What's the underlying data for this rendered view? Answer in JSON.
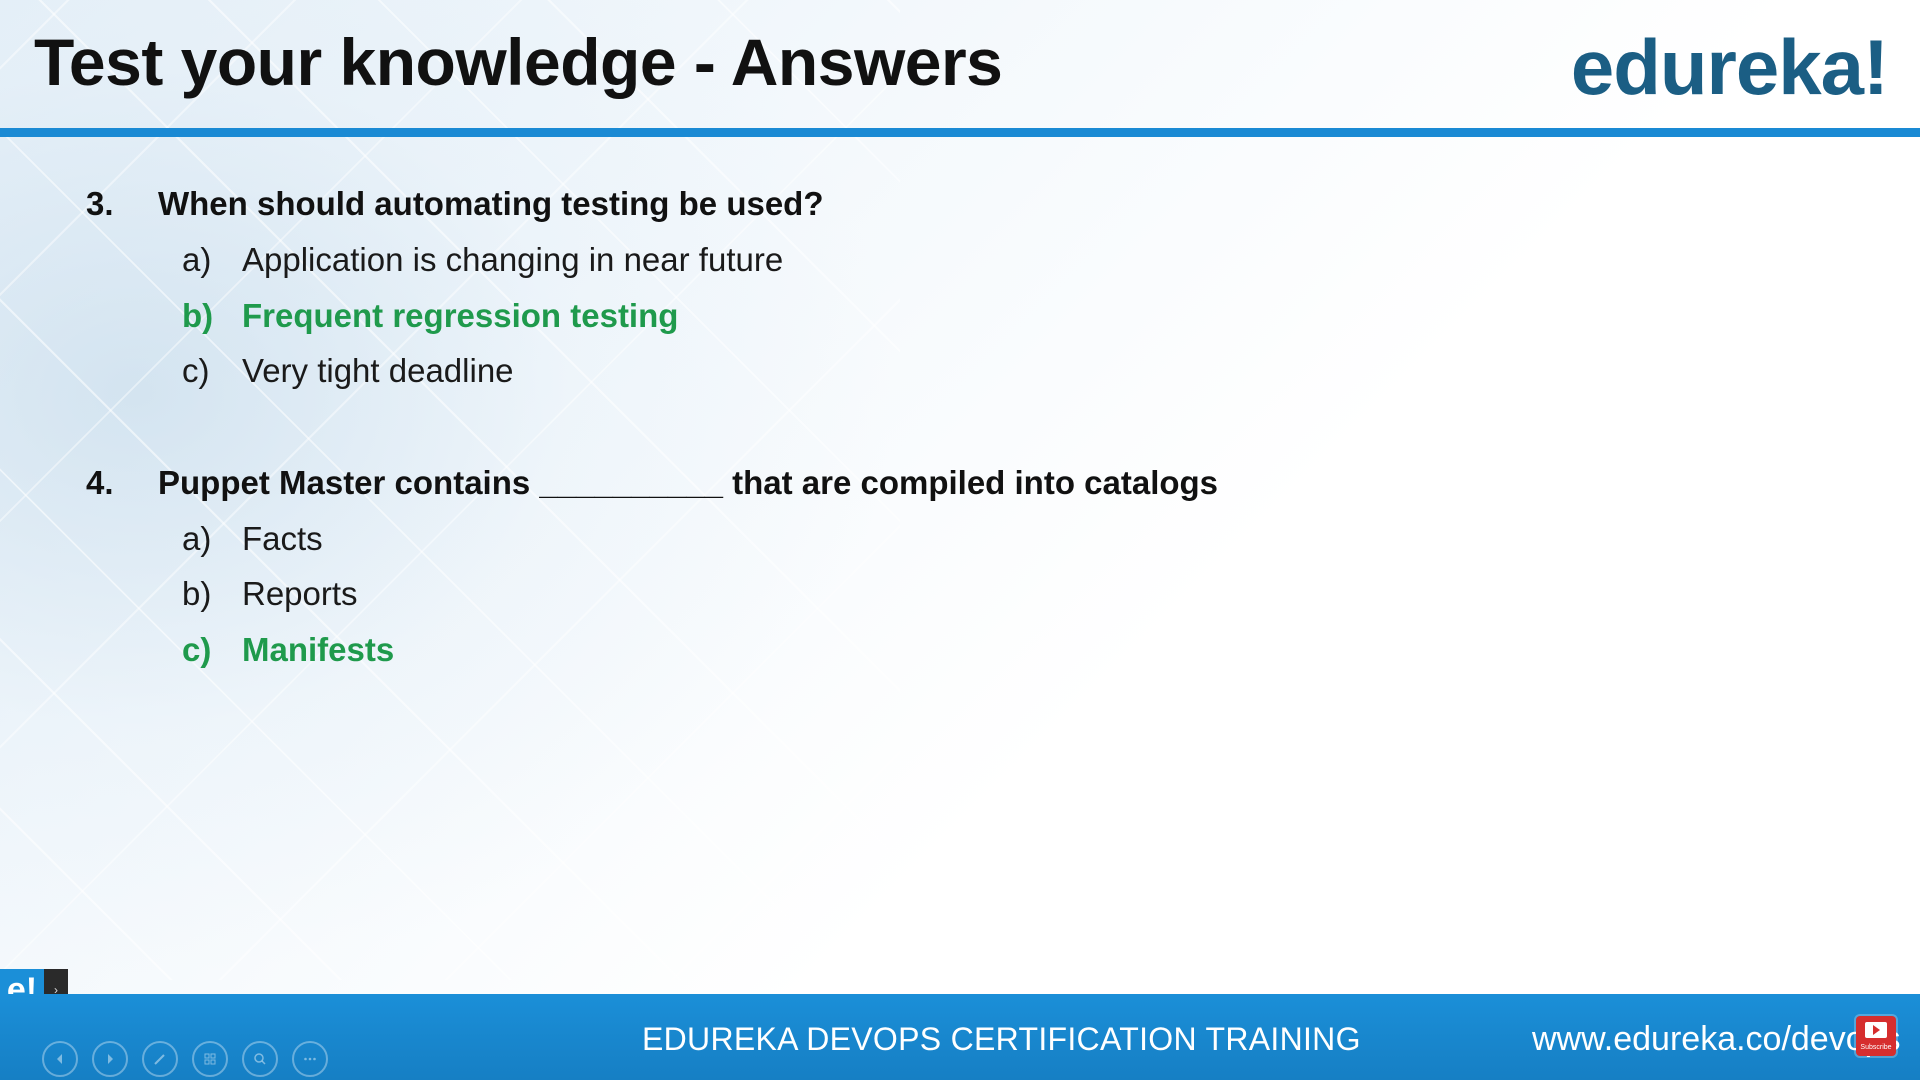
{
  "slide": {
    "title": "Test your knowledge - Answers",
    "logo_text": "edureka!"
  },
  "questions": [
    {
      "number": "3.",
      "text": "When should automating testing be used?",
      "options": [
        {
          "letter": "a)",
          "text": "Application is changing in near future",
          "correct": false
        },
        {
          "letter": "b)",
          "text": "Frequent regression testing",
          "correct": true
        },
        {
          "letter": "c)",
          "text": "Very tight deadline",
          "correct": false
        }
      ]
    },
    {
      "number": "4.",
      "text": "Puppet Master contains __________ that are compiled into catalogs",
      "options": [
        {
          "letter": "a)",
          "text": "Facts",
          "correct": false
        },
        {
          "letter": "b)",
          "text": "Reports",
          "correct": false
        },
        {
          "letter": "c)",
          "text": "Manifests",
          "correct": true
        }
      ]
    }
  ],
  "footer": {
    "title": "EDUREKA DEVOPS CERTIFICATION TRAINING",
    "url": "www.edureka.co/devops"
  },
  "overlay": {
    "mini_logo": "e!",
    "expand_glyph": "›",
    "subscribe_label": "Subscribe"
  },
  "controls": [
    {
      "name": "previous-slide-icon"
    },
    {
      "name": "next-slide-icon"
    },
    {
      "name": "pen-icon"
    },
    {
      "name": "slides-grid-icon"
    },
    {
      "name": "zoom-icon"
    },
    {
      "name": "more-options-icon"
    }
  ],
  "colors": {
    "accent_blue": "#1a8ad4",
    "correct_green": "#1f9a4c",
    "logo_blue": "#1b5e84"
  }
}
